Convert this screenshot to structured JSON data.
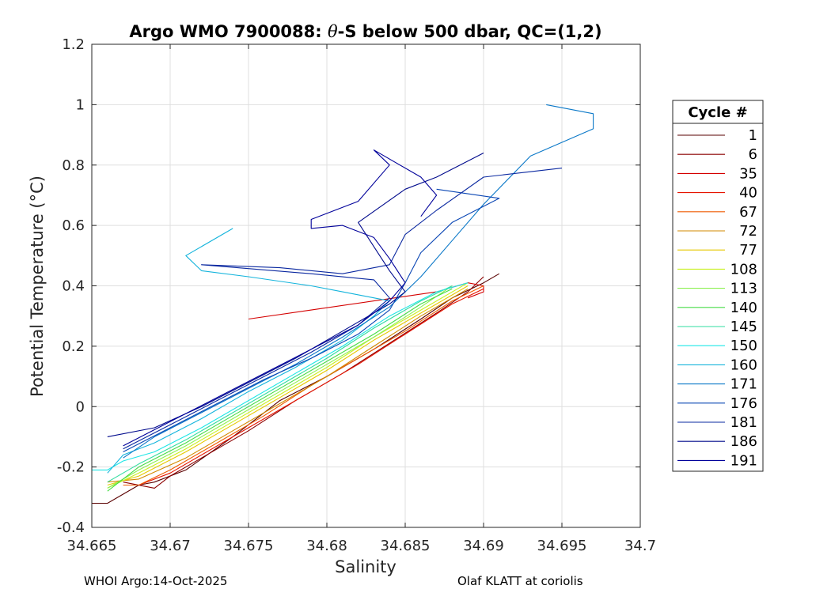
{
  "chart_data": {
    "type": "line",
    "title_prefix": "Argo WMO 7900088: ",
    "title_symbol": "θ",
    "title_suffix": "-S below 500 dbar,  QC=(1,2)",
    "xlabel": "Salinity",
    "ylabel": "Potential Temperature (°C)",
    "xlim": [
      34.665,
      34.7
    ],
    "ylim": [
      -0.4,
      1.2
    ],
    "xticks": [
      "34.665",
      "34.67",
      "34.675",
      "34.68",
      "34.685",
      "34.69",
      "34.695",
      "34.7"
    ],
    "yticks": [
      "-0.4",
      "-0.2",
      "0",
      "0.2",
      "0.4",
      "0.6",
      "0.8",
      "1",
      "1.2"
    ],
    "grid": true,
    "legend": {
      "title": "Cycle #",
      "placement": "right, outside axes",
      "entries": [
        "1",
        "6",
        "35",
        "40",
        "67",
        "72",
        "77",
        "108",
        "113",
        "140",
        "145",
        "150",
        "160",
        "171",
        "176",
        "181",
        "186",
        "191"
      ],
      "colors": [
        "#5a0000",
        "#8c0000",
        "#d40000",
        "#e61400",
        "#ef5a00",
        "#d28a00",
        "#e6c800",
        "#c8f01e",
        "#8cf050",
        "#46dc46",
        "#32dca0",
        "#1ee6e6",
        "#14b4dc",
        "#0a78c8",
        "#0a46b4",
        "#0a28a0",
        "#000a8c",
        "#00009a"
      ]
    },
    "series": [
      {
        "name": "1",
        "color": "#5a0000",
        "points": [
          [
            34.665,
            -0.32
          ],
          [
            34.666,
            -0.32
          ],
          [
            34.667,
            -0.29
          ],
          [
            34.668,
            -0.26
          ],
          [
            34.669,
            -0.25
          ],
          [
            34.671,
            -0.21
          ],
          [
            34.674,
            -0.1
          ],
          [
            34.677,
            0.02
          ],
          [
            34.68,
            0.1
          ],
          [
            34.683,
            0.19
          ],
          [
            34.686,
            0.29
          ],
          [
            34.688,
            0.36
          ],
          [
            34.69,
            0.41
          ],
          [
            34.691,
            0.44
          ]
        ]
      },
      {
        "name": "6",
        "color": "#8c0000",
        "points": [
          [
            34.667,
            -0.25
          ],
          [
            34.669,
            -0.27
          ],
          [
            34.67,
            -0.23
          ],
          [
            34.672,
            -0.17
          ],
          [
            34.675,
            -0.08
          ],
          [
            34.678,
            0.02
          ],
          [
            34.681,
            0.11
          ],
          [
            34.684,
            0.21
          ],
          [
            34.687,
            0.31
          ],
          [
            34.689,
            0.38
          ],
          [
            34.69,
            0.43
          ]
        ]
      },
      {
        "name": "35",
        "color": "#d40000",
        "points": [
          [
            34.675,
            0.29
          ],
          [
            34.679,
            0.32
          ],
          [
            34.683,
            0.35
          ],
          [
            34.687,
            0.38
          ],
          [
            34.689,
            0.41
          ],
          [
            34.69,
            0.4
          ],
          [
            34.69,
            0.38
          ],
          [
            34.689,
            0.36
          ]
        ]
      },
      {
        "name": "40",
        "color": "#e61400",
        "points": [
          [
            34.668,
            -0.26
          ],
          [
            34.67,
            -0.22
          ],
          [
            34.673,
            -0.13
          ],
          [
            34.676,
            -0.04
          ],
          [
            34.679,
            0.05
          ],
          [
            34.682,
            0.14
          ],
          [
            34.685,
            0.24
          ],
          [
            34.688,
            0.34
          ],
          [
            34.69,
            0.39
          ]
        ]
      },
      {
        "name": "67",
        "color": "#ef5a00",
        "points": [
          [
            34.667,
            -0.26
          ],
          [
            34.668,
            -0.26
          ],
          [
            34.67,
            -0.21
          ],
          [
            34.673,
            -0.12
          ],
          [
            34.676,
            -0.03
          ],
          [
            34.679,
            0.07
          ],
          [
            34.682,
            0.16
          ],
          [
            34.685,
            0.25
          ],
          [
            34.688,
            0.35
          ],
          [
            34.69,
            0.4
          ]
        ]
      },
      {
        "name": "72",
        "color": "#d28a00",
        "points": [
          [
            34.666,
            -0.25
          ],
          [
            34.668,
            -0.24
          ],
          [
            34.671,
            -0.17
          ],
          [
            34.674,
            -0.08
          ],
          [
            34.677,
            0.01
          ],
          [
            34.68,
            0.1
          ],
          [
            34.683,
            0.2
          ],
          [
            34.686,
            0.3
          ],
          [
            34.689,
            0.39
          ]
        ]
      },
      {
        "name": "77",
        "color": "#e6c800",
        "points": [
          [
            34.666,
            -0.26
          ],
          [
            34.668,
            -0.23
          ],
          [
            34.671,
            -0.15
          ],
          [
            34.674,
            -0.06
          ],
          [
            34.677,
            0.03
          ],
          [
            34.68,
            0.12
          ],
          [
            34.683,
            0.22
          ],
          [
            34.686,
            0.31
          ],
          [
            34.689,
            0.4
          ]
        ]
      },
      {
        "name": "108",
        "color": "#c8f01e",
        "points": [
          [
            34.666,
            -0.27
          ],
          [
            34.668,
            -0.22
          ],
          [
            34.671,
            -0.14
          ],
          [
            34.674,
            -0.05
          ],
          [
            34.677,
            0.04
          ],
          [
            34.68,
            0.13
          ],
          [
            34.683,
            0.23
          ],
          [
            34.686,
            0.32
          ],
          [
            34.689,
            0.41
          ]
        ]
      },
      {
        "name": "113",
        "color": "#8cf050",
        "points": [
          [
            34.666,
            -0.27
          ],
          [
            34.668,
            -0.21
          ],
          [
            34.671,
            -0.13
          ],
          [
            34.674,
            -0.04
          ],
          [
            34.677,
            0.05
          ],
          [
            34.68,
            0.14
          ],
          [
            34.683,
            0.23
          ],
          [
            34.686,
            0.33
          ],
          [
            34.688,
            0.4
          ]
        ]
      },
      {
        "name": "140",
        "color": "#46dc46",
        "points": [
          [
            34.666,
            -0.28
          ],
          [
            34.668,
            -0.2
          ],
          [
            34.671,
            -0.12
          ],
          [
            34.674,
            -0.03
          ],
          [
            34.677,
            0.06
          ],
          [
            34.68,
            0.15
          ],
          [
            34.683,
            0.24
          ],
          [
            34.686,
            0.34
          ],
          [
            34.688,
            0.39
          ]
        ]
      },
      {
        "name": "145",
        "color": "#32dca0",
        "points": [
          [
            34.666,
            -0.25
          ],
          [
            34.668,
            -0.19
          ],
          [
            34.671,
            -0.11
          ],
          [
            34.674,
            -0.02
          ],
          [
            34.677,
            0.07
          ],
          [
            34.68,
            0.16
          ],
          [
            34.683,
            0.26
          ],
          [
            34.686,
            0.35
          ],
          [
            34.688,
            0.4
          ]
        ]
      },
      {
        "name": "150",
        "color": "#1ee6e6",
        "points": [
          [
            34.665,
            -0.21
          ],
          [
            34.666,
            -0.21
          ],
          [
            34.667,
            -0.18
          ],
          [
            34.669,
            -0.15
          ],
          [
            34.672,
            -0.07
          ],
          [
            34.675,
            0.02
          ],
          [
            34.678,
            0.11
          ],
          [
            34.681,
            0.2
          ],
          [
            34.684,
            0.3
          ],
          [
            34.687,
            0.38
          ],
          [
            34.689,
            0.41
          ]
        ]
      },
      {
        "name": "160",
        "color": "#14b4dc",
        "points": [
          [
            34.666,
            -0.22
          ],
          [
            34.667,
            -0.16
          ],
          [
            34.669,
            -0.12
          ],
          [
            34.672,
            -0.04
          ],
          [
            34.675,
            0.05
          ],
          [
            34.678,
            0.13
          ],
          [
            34.681,
            0.22
          ],
          [
            34.683,
            0.3
          ],
          [
            34.684,
            0.35
          ],
          [
            34.681,
            0.38
          ],
          [
            34.679,
            0.4
          ],
          [
            34.675,
            0.43
          ],
          [
            34.672,
            0.45
          ],
          [
            34.671,
            0.5
          ],
          [
            34.674,
            0.59
          ]
        ]
      },
      {
        "name": "171",
        "color": "#0a78c8",
        "points": [
          [
            34.667,
            -0.17
          ],
          [
            34.669,
            -0.1
          ],
          [
            34.672,
            -0.02
          ],
          [
            34.675,
            0.06
          ],
          [
            34.678,
            0.14
          ],
          [
            34.681,
            0.23
          ],
          [
            34.684,
            0.33
          ],
          [
            34.686,
            0.43
          ],
          [
            34.688,
            0.55
          ],
          [
            34.69,
            0.67
          ],
          [
            34.693,
            0.83
          ],
          [
            34.697,
            0.92
          ],
          [
            34.697,
            0.97
          ],
          [
            34.694,
            1.0
          ]
        ]
      },
      {
        "name": "176",
        "color": "#0a46b4",
        "points": [
          [
            34.667,
            -0.15
          ],
          [
            34.67,
            -0.07
          ],
          [
            34.673,
            0.01
          ],
          [
            34.676,
            0.09
          ],
          [
            34.679,
            0.16
          ],
          [
            34.682,
            0.24
          ],
          [
            34.684,
            0.32
          ],
          [
            34.685,
            0.41
          ],
          [
            34.686,
            0.51
          ],
          [
            34.688,
            0.61
          ],
          [
            34.691,
            0.69
          ],
          [
            34.687,
            0.72
          ]
        ]
      },
      {
        "name": "181",
        "color": "#0a28a0",
        "points": [
          [
            34.667,
            -0.14
          ],
          [
            34.67,
            -0.06
          ],
          [
            34.673,
            0.02
          ],
          [
            34.676,
            0.1
          ],
          [
            34.679,
            0.18
          ],
          [
            34.682,
            0.27
          ],
          [
            34.684,
            0.36
          ],
          [
            34.683,
            0.42
          ],
          [
            34.679,
            0.44
          ],
          [
            34.672,
            0.47
          ],
          [
            34.677,
            0.46
          ],
          [
            34.681,
            0.44
          ],
          [
            34.684,
            0.47
          ],
          [
            34.685,
            0.57
          ],
          [
            34.687,
            0.65
          ],
          [
            34.69,
            0.76
          ],
          [
            34.695,
            0.79
          ]
        ]
      },
      {
        "name": "186",
        "color": "#000a8c",
        "points": [
          [
            34.666,
            -0.1
          ],
          [
            34.669,
            -0.07
          ],
          [
            34.672,
            0.0
          ],
          [
            34.675,
            0.08
          ],
          [
            34.678,
            0.16
          ],
          [
            34.681,
            0.25
          ],
          [
            34.684,
            0.34
          ],
          [
            34.685,
            0.38
          ],
          [
            34.684,
            0.45
          ],
          [
            34.683,
            0.53
          ],
          [
            34.682,
            0.61
          ],
          [
            34.685,
            0.72
          ],
          [
            34.687,
            0.76
          ],
          [
            34.69,
            0.84
          ]
        ]
      },
      {
        "name": "191",
        "color": "#00009a",
        "points": [
          [
            34.667,
            -0.13
          ],
          [
            34.67,
            -0.05
          ],
          [
            34.673,
            0.03
          ],
          [
            34.676,
            0.11
          ],
          [
            34.679,
            0.19
          ],
          [
            34.682,
            0.27
          ],
          [
            34.684,
            0.35
          ],
          [
            34.685,
            0.41
          ],
          [
            34.684,
            0.49
          ],
          [
            34.683,
            0.56
          ],
          [
            34.681,
            0.6
          ],
          [
            34.679,
            0.59
          ],
          [
            34.679,
            0.62
          ],
          [
            34.682,
            0.68
          ],
          [
            34.684,
            0.8
          ],
          [
            34.683,
            0.85
          ],
          [
            34.686,
            0.76
          ],
          [
            34.687,
            0.7
          ],
          [
            34.686,
            0.63
          ]
        ]
      }
    ]
  },
  "footer": {
    "left": "WHOI Argo:14-Oct-2025",
    "right": "Olaf KLATT at coriolis"
  }
}
